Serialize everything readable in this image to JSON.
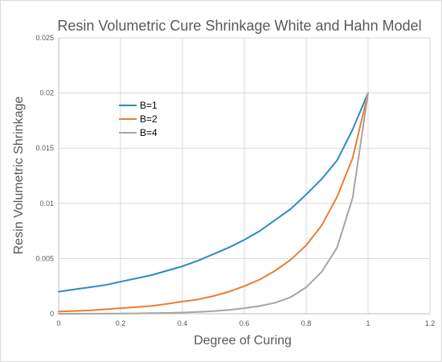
{
  "chart_data": {
    "type": "line",
    "title": "Resin Volumetric Cure Shrinkage White and Hahn Model",
    "xlabel": "Degree of Curing",
    "ylabel": "Resin Volumetric Shrinkage",
    "xlim": [
      0,
      1.2
    ],
    "ylim": [
      0,
      0.025
    ],
    "xticks": [
      "0",
      "0.2",
      "0.4",
      "0.6",
      "0.8",
      "1",
      "1.2"
    ],
    "yticks": [
      "0",
      "0.005",
      "0.01",
      "0.015",
      "0.02",
      "0.025"
    ],
    "grid": true,
    "legend": "upper-left inside plot",
    "x": [
      0,
      0.05,
      0.1,
      0.15,
      0.2,
      0.25,
      0.3,
      0.35,
      0.4,
      0.45,
      0.5,
      0.55,
      0.6,
      0.65,
      0.7,
      0.75,
      0.8,
      0.85,
      0.9,
      0.95,
      1
    ],
    "series": [
      {
        "name": "B=1",
        "color": "#2e8bc0",
        "values": [
          0.002,
          0.0022,
          0.0024,
          0.0026,
          0.0029,
          0.0032,
          0.0035,
          0.0039,
          0.0043,
          0.0048,
          0.0054,
          0.006,
          0.0067,
          0.0075,
          0.0085,
          0.0095,
          0.0108,
          0.0122,
          0.0139,
          0.0167,
          0.02
        ]
      },
      {
        "name": "B=2",
        "color": "#ed7d31",
        "values": [
          0.0002,
          0.00025,
          0.0003,
          0.0004,
          0.0005,
          0.0006,
          0.0007,
          0.0009,
          0.0011,
          0.0013,
          0.0016,
          0.002,
          0.0025,
          0.0031,
          0.0039,
          0.0049,
          0.0062,
          0.008,
          0.0106,
          0.0141,
          0.02
        ]
      },
      {
        "name": "B=4",
        "color": "#a5a5a5",
        "values": [
          0,
          0,
          1e-05,
          1e-05,
          2e-05,
          3e-05,
          5e-05,
          7e-05,
          0.00011,
          0.00016,
          0.00023,
          0.00034,
          0.0005,
          0.0007,
          0.001,
          0.0015,
          0.0024,
          0.0038,
          0.006,
          0.0105,
          0.02
        ]
      }
    ]
  }
}
